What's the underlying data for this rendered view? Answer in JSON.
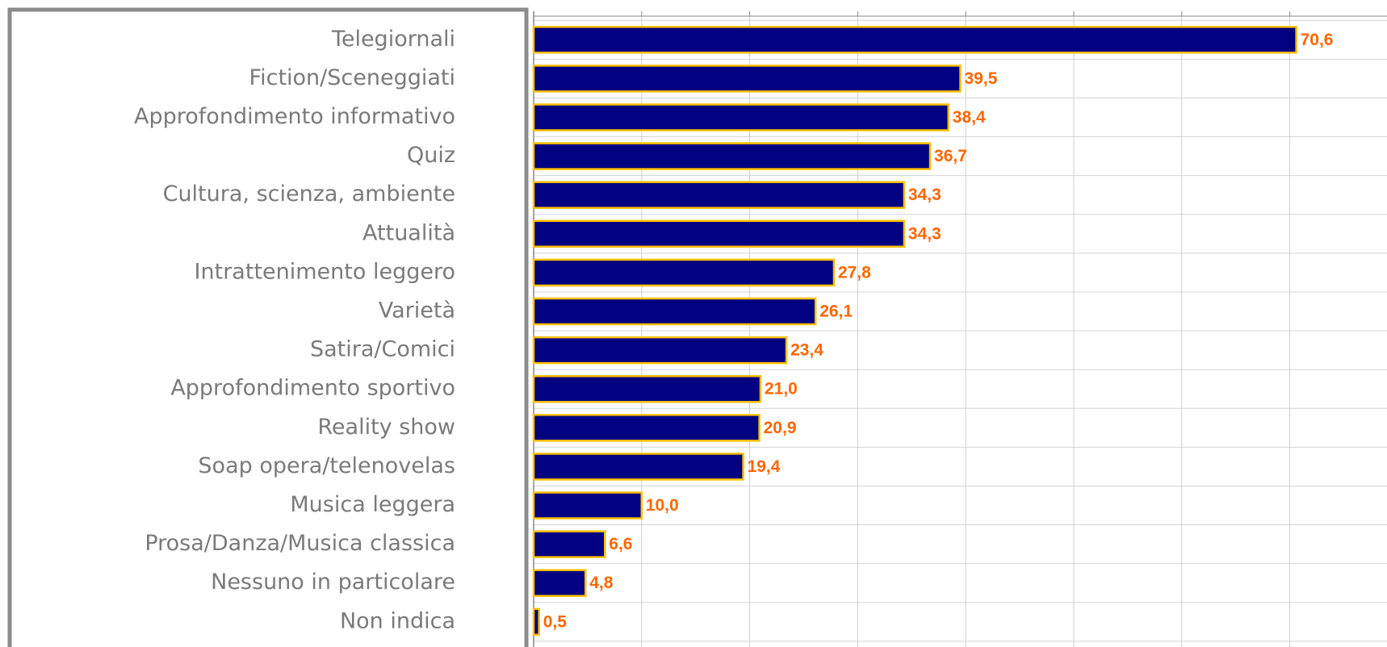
{
  "chart_data": {
    "type": "barh",
    "categories": [
      "Telegiornali",
      "Fiction/Sceneggiati",
      "Approfondimento informativo",
      "Quiz",
      "Cultura, scienza, ambiente",
      "Attualità",
      "Intrattenimento leggero",
      "Varietà",
      "Satira/Comici",
      "Approfondimento sportivo",
      "Reality show",
      "Soap opera/telenovelas",
      "Musica leggera",
      "Prosa/Danza/Musica classica",
      "Nessuno in particolare",
      "Non indica"
    ],
    "values": [
      70.6,
      39.5,
      38.4,
      36.7,
      34.3,
      34.3,
      27.8,
      26.1,
      23.4,
      21.0,
      20.9,
      19.4,
      10.0,
      6.6,
      4.8,
      0.5
    ],
    "value_labels": [
      "70,6",
      "39,5",
      "38,4",
      "36,7",
      "34,3",
      "34,3",
      "27,8",
      "26,1",
      "23,4",
      "21,0",
      "20,9",
      "19,4",
      "10,0",
      "6,6",
      "4,8",
      "0,5"
    ],
    "color": "#000080",
    "edge_color": "#ffc000",
    "label_color": "#ff6600",
    "xlim": [
      0,
      79
    ],
    "xticks": [
      0,
      10,
      20,
      30,
      40,
      50,
      60,
      70
    ],
    "grid": true
  }
}
